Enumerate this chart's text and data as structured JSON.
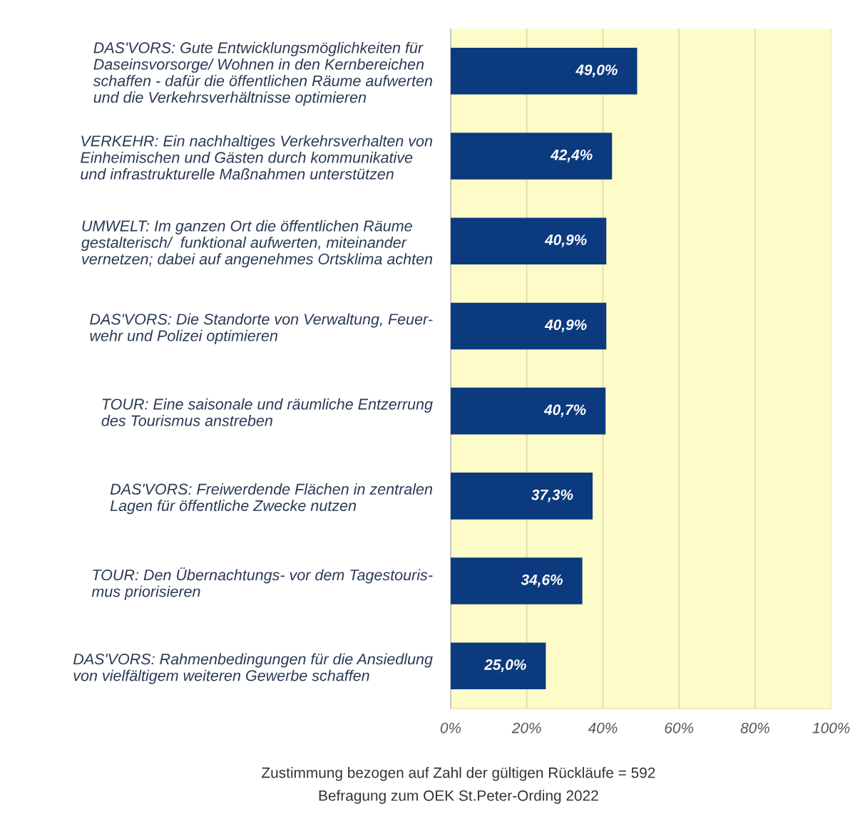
{
  "chart_data": {
    "type": "bar",
    "orientation": "horizontal",
    "categories": [
      "DAS'VORS: Gute Entwicklungsmöglichkeiten für\nDaseinsvorsorge/ Wohnen in den Kernbereichen\nschaffen - dafür die öffentlichen Räume aufwerten\nund die Verkehrsverhältnisse optimieren",
      "VERKEHR: Ein nachhaltiges Verkehrsverhalten von\nEinheimischen und Gästen durch kommunikative\nund infrastrukturelle Maßnahmen unterstützen",
      "UMWELT: Im ganzen Ort die öffentlichen Räume\ngestalterisch/  funktional aufwerten, miteinander\nvernetzen; dabei auf angenehmes Ortsklima achten",
      "DAS'VORS: Die Standorte von Verwaltung, Feuer-\nwehr und Polizei optimieren",
      "TOUR: Eine saisonale und räumliche Entzerrung\ndes Tourismus anstreben",
      "DAS'VORS: Freiwerdende Flächen in zentralen\nLagen für öffentliche Zwecke nutzen",
      "TOUR: Den Übernachtungs- vor dem Tagestouris-\nmus priorisieren",
      "DAS'VORS: Rahmenbedingungen für die Ansiedlung\nvon vielfältigem weiteren Gewerbe schaffen"
    ],
    "values": [
      49.0,
      42.4,
      40.9,
      40.9,
      40.7,
      37.3,
      34.6,
      25.0
    ],
    "value_labels": [
      "49,0%",
      "42,4%",
      "40,9%",
      "40,9%",
      "40,7%",
      "37,3%",
      "34,6%",
      "25,0%"
    ],
    "color": "#0c3a7e",
    "xlim": [
      0,
      100
    ],
    "xticks": [
      {
        "value": 0,
        "label": "0%"
      },
      {
        "value": 20,
        "label": "20%"
      },
      {
        "value": 40,
        "label": "40%"
      },
      {
        "value": 60,
        "label": "60%"
      },
      {
        "value": 80,
        "label": "80%"
      },
      {
        "value": 100,
        "label": "100%"
      }
    ],
    "grid": "x",
    "annotations": [
      "Zustimmung bezogen auf Zahl der gültigen Rückläufe = 592",
      "Befragung zum OEK St.Peter-Ording 2022"
    ]
  }
}
